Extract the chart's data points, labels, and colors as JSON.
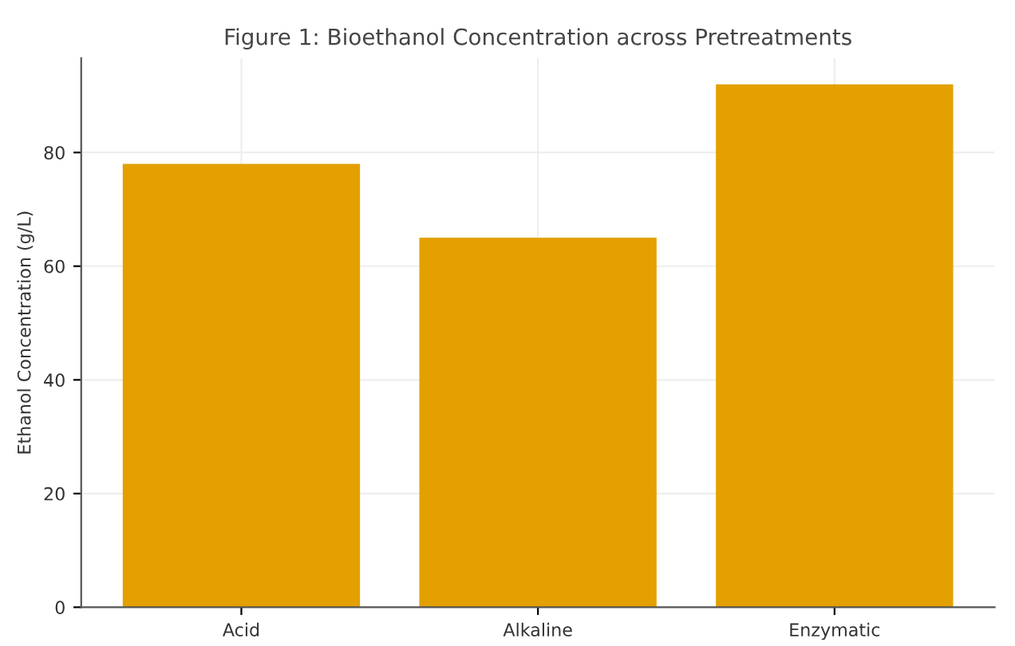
{
  "chart_data": {
    "type": "bar",
    "title": "Figure 1: Bioethanol Concentration across Pretreatments",
    "ylabel": "Ethanol Concentration (g/L)",
    "categories": [
      "Acid",
      "Alkaline",
      "Enzymatic"
    ],
    "values": [
      78,
      65,
      92
    ],
    "color": "#e3a000",
    "ylim": [
      0,
      96.6
    ],
    "yticks": [
      0,
      20,
      40,
      60,
      80
    ],
    "grid": true
  }
}
